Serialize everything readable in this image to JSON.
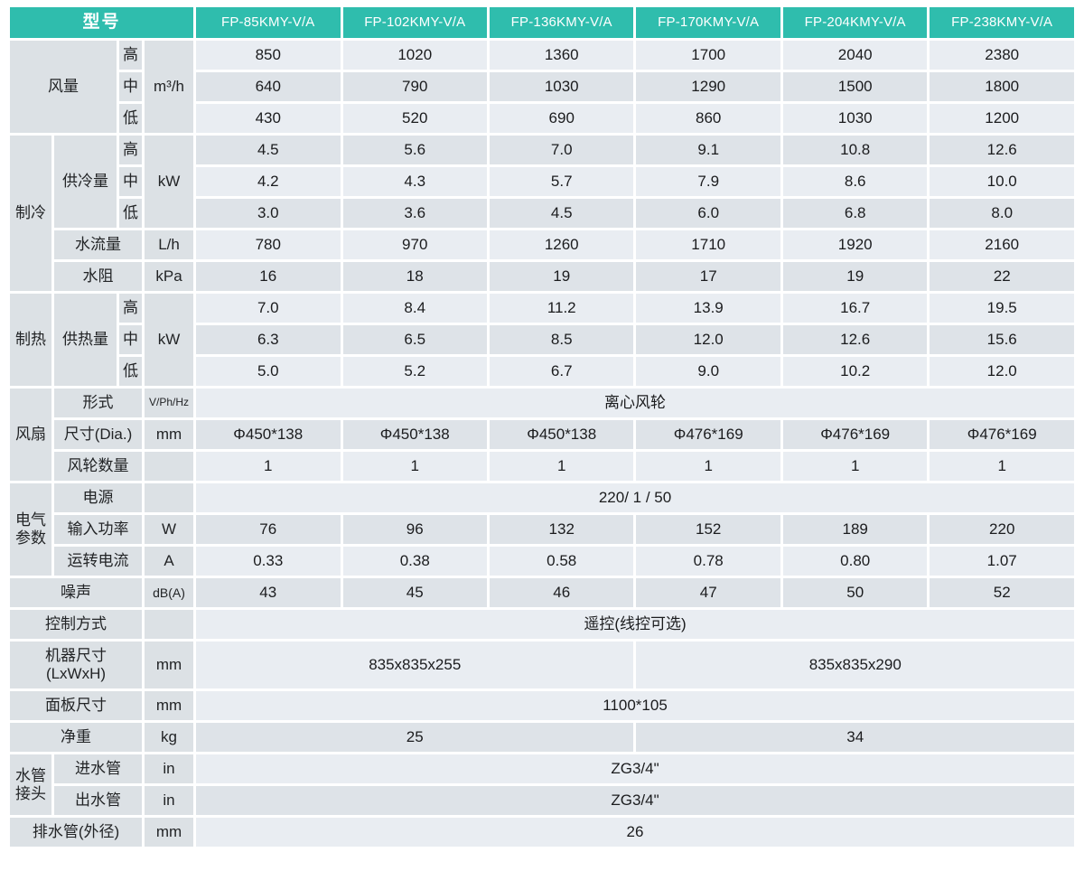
{
  "colors": {
    "header_teal": "#2fbdad",
    "label_gray": "#dce1e5",
    "row_light": "#e9edf2",
    "row_dark": "#dee3e8",
    "header_text": "#ffffff",
    "body_text": "#1b1c1e"
  },
  "header": {
    "model_label": "型号",
    "models": [
      "FP-85KMY-V/A",
      "FP-102KMY-V/A",
      "FP-136KMY-V/A",
      "FP-170KMY-V/A",
      "FP-204KMY-V/A",
      "FP-238KMY-V/A"
    ]
  },
  "rows": [
    {
      "shade": "L",
      "cells": [
        {
          "t": "风量",
          "cs": 2,
          "rs": 3,
          "k": "lab"
        },
        {
          "t": "高",
          "k": "lab"
        },
        {
          "t": "m³/h",
          "rs": 3,
          "k": "unit"
        },
        {
          "t": "850"
        },
        {
          "t": "1020"
        },
        {
          "t": "1360"
        },
        {
          "t": "1700"
        },
        {
          "t": "2040"
        },
        {
          "t": "2380"
        }
      ]
    },
    {
      "shade": "D",
      "cells": [
        {
          "t": "中",
          "k": "lab"
        },
        {
          "t": "640"
        },
        {
          "t": "790"
        },
        {
          "t": "1030"
        },
        {
          "t": "1290"
        },
        {
          "t": "1500"
        },
        {
          "t": "1800"
        }
      ]
    },
    {
      "shade": "L",
      "cells": [
        {
          "t": "低",
          "k": "lab"
        },
        {
          "t": "430"
        },
        {
          "t": "520"
        },
        {
          "t": "690"
        },
        {
          "t": "860"
        },
        {
          "t": "1030"
        },
        {
          "t": "1200"
        }
      ]
    },
    {
      "shade": "D",
      "cells": [
        {
          "t": "制冷",
          "rs": 5,
          "k": "lab"
        },
        {
          "t": "供冷量",
          "rs": 3,
          "k": "lab"
        },
        {
          "t": "高",
          "k": "lab"
        },
        {
          "t": "kW",
          "rs": 3,
          "k": "unit"
        },
        {
          "t": "4.5"
        },
        {
          "t": "5.6"
        },
        {
          "t": "7.0"
        },
        {
          "t": "9.1"
        },
        {
          "t": "10.8"
        },
        {
          "t": "12.6"
        }
      ]
    },
    {
      "shade": "L",
      "cells": [
        {
          "t": "中",
          "k": "lab"
        },
        {
          "t": "4.2"
        },
        {
          "t": "4.3"
        },
        {
          "t": "5.7"
        },
        {
          "t": "7.9"
        },
        {
          "t": "8.6"
        },
        {
          "t": "10.0"
        }
      ]
    },
    {
      "shade": "D",
      "cells": [
        {
          "t": "低",
          "k": "lab"
        },
        {
          "t": "3.0"
        },
        {
          "t": "3.6"
        },
        {
          "t": "4.5"
        },
        {
          "t": "6.0"
        },
        {
          "t": "6.8"
        },
        {
          "t": "8.0"
        }
      ]
    },
    {
      "shade": "L",
      "cells": [
        {
          "t": "水流量",
          "cs": 2,
          "k": "lab"
        },
        {
          "t": "L/h",
          "k": "unit"
        },
        {
          "t": "780"
        },
        {
          "t": "970"
        },
        {
          "t": "1260"
        },
        {
          "t": "1710"
        },
        {
          "t": "1920"
        },
        {
          "t": "2160"
        }
      ]
    },
    {
      "shade": "D",
      "cells": [
        {
          "t": "水阻",
          "cs": 2,
          "k": "lab"
        },
        {
          "t": "kPa",
          "k": "unit"
        },
        {
          "t": "16"
        },
        {
          "t": "18"
        },
        {
          "t": "19"
        },
        {
          "t": "17"
        },
        {
          "t": "19"
        },
        {
          "t": "22"
        }
      ]
    },
    {
      "shade": "L",
      "cells": [
        {
          "t": "制热",
          "rs": 3,
          "k": "lab"
        },
        {
          "t": "供热量",
          "rs": 3,
          "k": "lab"
        },
        {
          "t": "高",
          "k": "lab"
        },
        {
          "t": "kW",
          "rs": 3,
          "k": "unit"
        },
        {
          "t": "7.0"
        },
        {
          "t": "8.4"
        },
        {
          "t": "11.2"
        },
        {
          "t": "13.9"
        },
        {
          "t": "16.7"
        },
        {
          "t": "19.5"
        }
      ]
    },
    {
      "shade": "D",
      "cells": [
        {
          "t": "中",
          "k": "lab"
        },
        {
          "t": "6.3"
        },
        {
          "t": "6.5"
        },
        {
          "t": "8.5"
        },
        {
          "t": "12.0"
        },
        {
          "t": "12.6"
        },
        {
          "t": "15.6"
        }
      ]
    },
    {
      "shade": "L",
      "cells": [
        {
          "t": "低",
          "k": "lab"
        },
        {
          "t": "5.0"
        },
        {
          "t": "5.2"
        },
        {
          "t": "6.7"
        },
        {
          "t": "9.0"
        },
        {
          "t": "10.2"
        },
        {
          "t": "12.0"
        }
      ]
    },
    {
      "shade": "L",
      "cells": [
        {
          "t": "风扇",
          "rs": 3,
          "k": "lab"
        },
        {
          "t": "形式",
          "cs": 2,
          "k": "lab"
        },
        {
          "t": "V/Ph/Hz",
          "k": "unit",
          "sz": 12
        },
        {
          "t": "离心风轮",
          "cs": 6
        }
      ]
    },
    {
      "shade": "D",
      "cells": [
        {
          "t": "尺寸(Dia.)",
          "cs": 2,
          "k": "lab"
        },
        {
          "t": "mm",
          "k": "unit"
        },
        {
          "t": "Φ450*138"
        },
        {
          "t": "Φ450*138"
        },
        {
          "t": "Φ450*138"
        },
        {
          "t": "Φ476*169"
        },
        {
          "t": "Φ476*169"
        },
        {
          "t": "Φ476*169"
        }
      ]
    },
    {
      "shade": "L",
      "cells": [
        {
          "t": "风轮数量",
          "cs": 2,
          "k": "lab"
        },
        {
          "t": "",
          "k": "unit"
        },
        {
          "t": "1"
        },
        {
          "t": "1"
        },
        {
          "t": "1"
        },
        {
          "t": "1"
        },
        {
          "t": "1"
        },
        {
          "t": "1"
        }
      ]
    },
    {
      "shade": "L",
      "cells": [
        {
          "t": "电气参数",
          "rs": 3,
          "k": "lab"
        },
        {
          "t": "电源",
          "cs": 2,
          "k": "lab"
        },
        {
          "t": "",
          "k": "unit"
        },
        {
          "t": "220/ 1 / 50",
          "cs": 6
        }
      ]
    },
    {
      "shade": "D",
      "cells": [
        {
          "t": "输入功率",
          "cs": 2,
          "k": "lab"
        },
        {
          "t": "W",
          "k": "unit"
        },
        {
          "t": "76"
        },
        {
          "t": "96"
        },
        {
          "t": "132"
        },
        {
          "t": "152"
        },
        {
          "t": "189"
        },
        {
          "t": "220"
        }
      ]
    },
    {
      "shade": "L",
      "cells": [
        {
          "t": "运转电流",
          "cs": 2,
          "k": "lab"
        },
        {
          "t": "A",
          "k": "unit"
        },
        {
          "t": "0.33"
        },
        {
          "t": "0.38"
        },
        {
          "t": "0.58"
        },
        {
          "t": "0.78"
        },
        {
          "t": "0.80"
        },
        {
          "t": "1.07"
        }
      ]
    },
    {
      "shade": "D",
      "cells": [
        {
          "t": "噪声",
          "cs": 3,
          "k": "lab"
        },
        {
          "t": "dB(A)",
          "k": "unit",
          "sz": 14
        },
        {
          "t": "43"
        },
        {
          "t": "45"
        },
        {
          "t": "46"
        },
        {
          "t": "47"
        },
        {
          "t": "50"
        },
        {
          "t": "52"
        }
      ]
    },
    {
      "shade": "L",
      "cells": [
        {
          "t": "控制方式",
          "cs": 3,
          "k": "lab"
        },
        {
          "t": "",
          "k": "unit"
        },
        {
          "t": "遥控(线控可选)",
          "cs": 6
        }
      ]
    },
    {
      "shade": "L",
      "h": 52,
      "cells": [
        {
          "t": "机器尺寸\n(LxWxH)",
          "cs": 3,
          "k": "lab"
        },
        {
          "t": "mm",
          "k": "unit"
        },
        {
          "t": "835x835x255",
          "cs": 3
        },
        {
          "t": "835x835x290",
          "cs": 3
        }
      ]
    },
    {
      "shade": "L",
      "cells": [
        {
          "t": "面板尺寸",
          "cs": 3,
          "k": "lab"
        },
        {
          "t": "mm",
          "k": "unit"
        },
        {
          "t": "1100*105",
          "cs": 6
        }
      ]
    },
    {
      "shade": "D",
      "cells": [
        {
          "t": "净重",
          "cs": 3,
          "k": "lab"
        },
        {
          "t": "kg",
          "k": "unit"
        },
        {
          "t": "25",
          "cs": 3
        },
        {
          "t": "34",
          "cs": 3
        }
      ]
    },
    {
      "shade": "L",
      "cells": [
        {
          "t": "水管接头",
          "rs": 2,
          "k": "lab"
        },
        {
          "t": "进水管",
          "cs": 2,
          "k": "lab"
        },
        {
          "t": "in",
          "k": "unit"
        },
        {
          "t": "ZG3/4\"",
          "cs": 6
        }
      ]
    },
    {
      "shade": "D",
      "cells": [
        {
          "t": "出水管",
          "cs": 2,
          "k": "lab"
        },
        {
          "t": "in",
          "k": "unit"
        },
        {
          "t": "ZG3/4\"",
          "cs": 6
        }
      ]
    },
    {
      "shade": "L",
      "cells": [
        {
          "t": "排水管(外径)",
          "cs": 3,
          "k": "lab"
        },
        {
          "t": "mm",
          "k": "unit"
        },
        {
          "t": "26",
          "cs": 6
        }
      ]
    }
  ]
}
